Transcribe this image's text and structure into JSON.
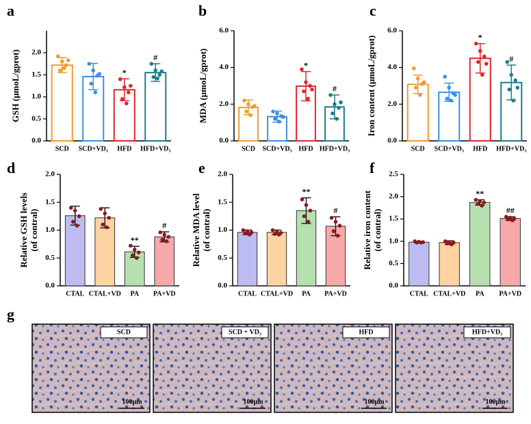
{
  "chart_data": [
    {
      "type": "bar",
      "panel": "a",
      "ylabel": "GSH (μmoL/gprot)",
      "categories": [
        "SCD",
        "SCD+VD₃",
        "HFD",
        "HFD+VD₃"
      ],
      "colors": [
        "#f39a2e",
        "#3b8fe4",
        "#e1262b",
        "#1d7c8e"
      ],
      "filled": false,
      "values": [
        1.72,
        1.46,
        1.16,
        1.55
      ],
      "errors": [
        0.17,
        0.3,
        0.25,
        0.2
      ],
      "points": [
        [
          1.92,
          1.8,
          1.72,
          1.6,
          1.65,
          1.83
        ],
        [
          1.75,
          1.6,
          1.48,
          1.3,
          1.1,
          1.52
        ],
        [
          1.4,
          1.22,
          1.1,
          0.95,
          0.85,
          1.25
        ],
        [
          1.75,
          1.6,
          1.5,
          1.45,
          1.42,
          1.58
        ]
      ],
      "annotations": [
        null,
        null,
        "*",
        "#"
      ],
      "ylim": [
        0,
        2.5
      ],
      "yticks": [
        {
          "value": 0,
          "label": "0.0"
        },
        {
          "value": 0.5,
          "label": "0.5"
        },
        {
          "value": 1,
          "label": "1.0"
        },
        {
          "value": 1.5,
          "label": "1.5"
        },
        {
          "value": 2,
          "label": "2.0"
        }
      ]
    },
    {
      "type": "bar",
      "panel": "b",
      "ylabel": "MDA (μmoL/gprot)",
      "categories": [
        "SCD",
        "SCD+VD₃",
        "HFD",
        "HFD+VD₃"
      ],
      "colors": [
        "#f39a2e",
        "#3b8fe4",
        "#e1262b",
        "#1d7c8e"
      ],
      "filled": false,
      "values": [
        1.82,
        1.32,
        2.98,
        1.85
      ],
      "errors": [
        0.4,
        0.3,
        0.8,
        0.65
      ],
      "points": [
        [
          2.2,
          2.0,
          1.85,
          1.6,
          1.4,
          1.9
        ],
        [
          1.6,
          1.5,
          1.35,
          1.2,
          1.05,
          1.3
        ],
        [
          3.9,
          3.2,
          3.0,
          2.7,
          2.3,
          2.8
        ],
        [
          2.5,
          2.0,
          1.8,
          1.5,
          1.2,
          2.1
        ]
      ],
      "annotations": [
        null,
        null,
        "*",
        "#"
      ],
      "ylim": [
        0,
        6
      ],
      "yticks": [
        {
          "value": 0,
          "label": "0.0"
        },
        {
          "value": 2,
          "label": "2.0"
        },
        {
          "value": 4,
          "label": "4.0"
        },
        {
          "value": 6,
          "label": "6.0"
        }
      ]
    },
    {
      "type": "bar",
      "panel": "c",
      "ylabel": "Iron content (μmoL/gprot)",
      "categories": [
        "SCD",
        "SCD+VD₃",
        "HFD",
        "HFD+VD₃"
      ],
      "colors": [
        "#f39a2e",
        "#3b8fe4",
        "#e1262b",
        "#1d7c8e"
      ],
      "filled": false,
      "values": [
        3.08,
        2.65,
        4.5,
        3.18
      ],
      "errors": [
        0.5,
        0.5,
        0.8,
        0.95
      ],
      "points": [
        [
          3.95,
          3.4,
          3.1,
          2.9,
          2.5,
          3.2
        ],
        [
          3.5,
          2.9,
          2.6,
          2.3,
          2.2,
          2.5
        ],
        [
          5.3,
          4.9,
          4.6,
          4.3,
          3.6,
          4.2
        ],
        [
          4.3,
          3.6,
          3.3,
          2.8,
          2.2,
          2.9
        ]
      ],
      "annotations": [
        null,
        null,
        "*",
        "#"
      ],
      "ylim": [
        0,
        6
      ],
      "yticks": [
        {
          "value": 0,
          "label": "0.0"
        },
        {
          "value": 2,
          "label": "2.0"
        },
        {
          "value": 4,
          "label": "4.0"
        },
        {
          "value": 6,
          "label": "6.0"
        }
      ]
    },
    {
      "type": "bar",
      "panel": "d",
      "ylabel": [
        "Relative GSH levels",
        "(of contral)"
      ],
      "categories": [
        "CTAL",
        "CTAL+VD",
        "PA",
        "PA+VD"
      ],
      "colors": [
        "#bcbcf2",
        "#fdd3a2",
        "#b7e0b1",
        "#f6a9a8"
      ],
      "filled": true,
      "point_color": "#8b1a1a",
      "values": [
        1.26,
        1.22,
        0.61,
        0.88
      ],
      "errors": [
        0.17,
        0.18,
        0.1,
        0.09
      ],
      "points": [
        [
          1.4,
          1.35,
          1.25,
          1.15,
          1.08
        ],
        [
          1.38,
          1.3,
          1.22,
          1.1,
          1.05
        ],
        [
          0.72,
          0.65,
          0.6,
          0.55,
          0.5
        ],
        [
          0.96,
          0.92,
          0.88,
          0.83,
          0.8
        ]
      ],
      "annotations": [
        null,
        null,
        "**",
        "#"
      ],
      "ylim": [
        0,
        2
      ],
      "yticks": [
        {
          "value": 0,
          "label": "0.0"
        },
        {
          "value": 0.5,
          "label": "0.5"
        },
        {
          "value": 1,
          "label": "1.0"
        },
        {
          "value": 1.5,
          "label": "1.5"
        },
        {
          "value": 2,
          "label": "2.0"
        }
      ]
    },
    {
      "type": "bar",
      "panel": "e",
      "ylabel": [
        "Relative MDA level",
        "(of contral)"
      ],
      "categories": [
        "CTAL",
        "CTAL+VD",
        "PA",
        "PA+VD"
      ],
      "colors": [
        "#bcbcf2",
        "#fdd3a2",
        "#b7e0b1",
        "#f6a9a8"
      ],
      "filled": true,
      "point_color": "#8b1a1a",
      "values": [
        0.96,
        0.96,
        1.35,
        1.07
      ],
      "errors": [
        0.04,
        0.04,
        0.23,
        0.17
      ],
      "points": [
        [
          1.0,
          0.98,
          0.96,
          0.94,
          0.92
        ],
        [
          1.0,
          0.98,
          0.95,
          0.93,
          0.92
        ],
        [
          1.55,
          1.45,
          1.35,
          1.25,
          1.15
        ],
        [
          1.22,
          1.15,
          1.08,
          0.98,
          0.9
        ]
      ],
      "annotations": [
        null,
        null,
        "**",
        "#"
      ],
      "ylim": [
        0,
        2
      ],
      "yticks": [
        {
          "value": 0,
          "label": "0.0"
        },
        {
          "value": 0.5,
          "label": "0.5"
        },
        {
          "value": 1,
          "label": "1.0"
        },
        {
          "value": 1.5,
          "label": "1.5"
        },
        {
          "value": 2,
          "label": "2.0"
        }
      ]
    },
    {
      "type": "bar",
      "panel": "f",
      "ylabel": [
        "Relative iron content",
        "(of contral)"
      ],
      "categories": [
        "CTAL",
        "CTAL+VD",
        "PA",
        "PA+VD"
      ],
      "colors": [
        "#bcbcf2",
        "#fdd3a2",
        "#b7e0b1",
        "#f6a9a8"
      ],
      "filled": true,
      "point_color": "#8b1a1a",
      "values": [
        0.98,
        0.97,
        1.87,
        1.51
      ],
      "errors": [
        0.02,
        0.04,
        0.06,
        0.04
      ],
      "points": [
        [
          1.0,
          0.99,
          0.98,
          0.97,
          0.97
        ],
        [
          1.0,
          0.98,
          0.97,
          0.95,
          0.93
        ],
        [
          1.93,
          1.9,
          1.87,
          1.84,
          1.8
        ],
        [
          1.55,
          1.53,
          1.51,
          1.49,
          1.47
        ]
      ],
      "annotations": [
        null,
        null,
        "**",
        "##"
      ],
      "ylim": [
        0,
        2.5
      ],
      "yticks": [
        {
          "value": 0,
          "label": "0.0"
        },
        {
          "value": 0.5,
          "label": "0.5"
        },
        {
          "value": 1,
          "label": "1.0"
        },
        {
          "value": 1.5,
          "label": "1.5"
        },
        {
          "value": 2,
          "label": "2.0"
        },
        {
          "value": 2.5,
          "label": "2.5"
        }
      ]
    }
  ],
  "micrographs": {
    "panel": "g",
    "images": [
      {
        "label": "SCD",
        "scale": "100μm"
      },
      {
        "label": "SCD + VD₃",
        "scale": "100μm"
      },
      {
        "label": "HFD",
        "scale": "100μm"
      },
      {
        "label": "HFD+VD₃",
        "scale": "100μm"
      }
    ]
  }
}
